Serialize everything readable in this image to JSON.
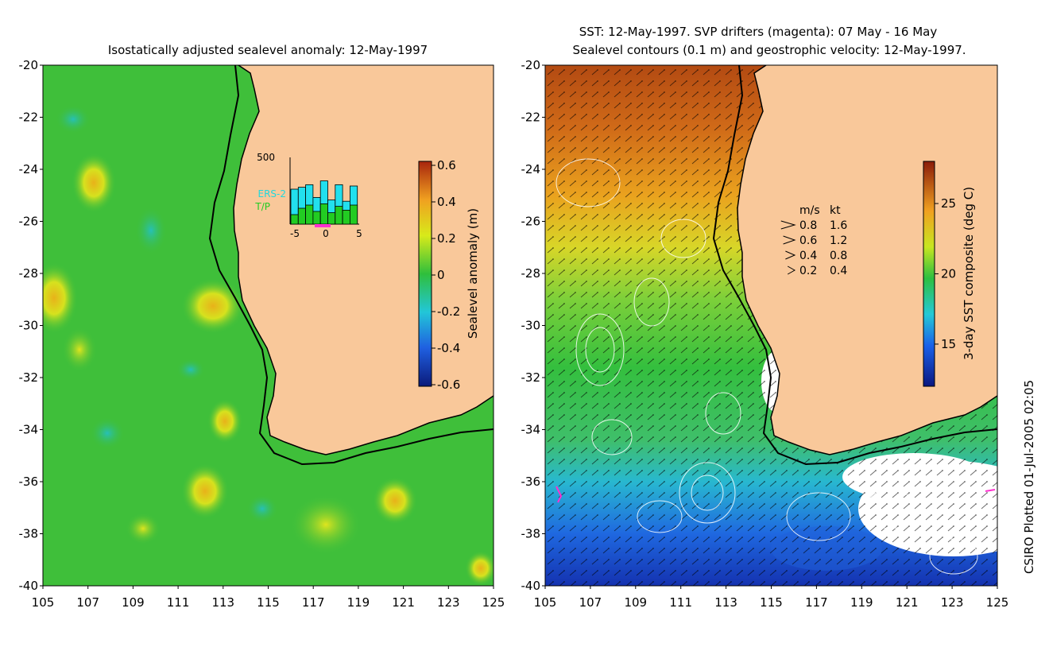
{
  "left_panel": {
    "title": "Isostatically adjusted sealevel anomaly: 12-May-1997",
    "colorbar": {
      "label": "Sealevel anomaly (m)",
      "ticks": [
        "0.6",
        "0.4",
        "0.2",
        "0",
        "-0.2",
        "-0.4",
        "-0.6"
      ]
    },
    "inset": {
      "ymax_label": "500",
      "series_labels": [
        "ERS-2",
        "T/P"
      ],
      "x_ticks": [
        "-5",
        "0",
        "5"
      ],
      "bars_ers2": [
        0.55,
        0.58,
        0.62,
        0.42,
        0.68,
        0.38,
        0.62,
        0.36,
        0.6
      ],
      "bars_tp": [
        0.15,
        0.25,
        0.3,
        0.2,
        0.32,
        0.18,
        0.28,
        0.22,
        0.3
      ]
    }
  },
  "right_panel": {
    "title_line1": "SST: 12-May-1997. SVP drifters (magenta): 07 May - 16 May",
    "title_line2": "Sealevel contours (0.1 m) and geostrophic velocity: 12-May-1997.",
    "colorbar": {
      "label": "3-day SST composite (deg C)",
      "ticks": [
        "25",
        "20",
        "15"
      ]
    },
    "legend": {
      "header_ms": "m/s",
      "header_kt": "kt",
      "rows": [
        {
          "ms": "0.8",
          "kt": "1.6"
        },
        {
          "ms": "0.6",
          "kt": "1.2"
        },
        {
          "ms": "0.4",
          "kt": "0.8"
        },
        {
          "ms": "0.2",
          "kt": "0.4"
        }
      ]
    }
  },
  "axes": {
    "y_ticks": [
      "-20",
      "-22",
      "-24",
      "-26",
      "-28",
      "-30",
      "-32",
      "-34",
      "-36",
      "-38",
      "-40"
    ],
    "x_ticks": [
      "105",
      "107",
      "109",
      "111",
      "113",
      "115",
      "117",
      "119",
      "121",
      "123",
      "125"
    ]
  },
  "credit": "CSIRO Plotted 01-Jul-2005 02:05",
  "colors": {
    "land": "#f9c89a",
    "anomaly_bg": "#3fbf3a",
    "coast": "#000000"
  }
}
